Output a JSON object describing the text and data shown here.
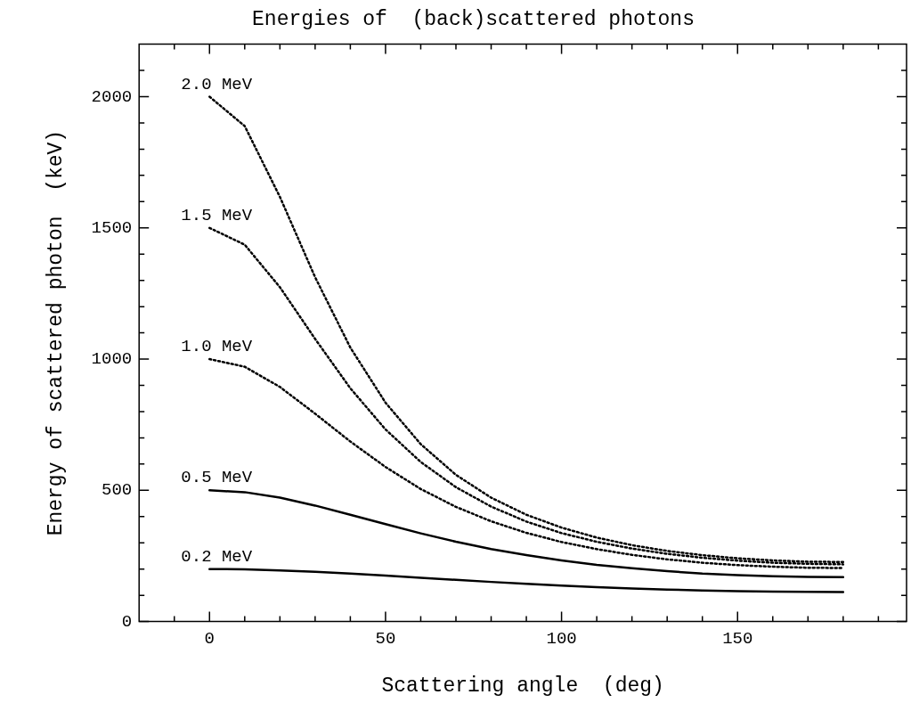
{
  "chart_data": {
    "type": "line",
    "title": "Energies of  (back)scattered photons",
    "xlabel": "Scattering angle  (deg)",
    "ylabel": "Energy of scattered photon  (keV)",
    "x": [
      0,
      10,
      20,
      30,
      40,
      50,
      60,
      70,
      80,
      90,
      100,
      110,
      120,
      130,
      140,
      150,
      160,
      170,
      180
    ],
    "series": [
      {
        "name": "2.0 MeV",
        "color": "#000000",
        "line_style": "dotted",
        "values": [
          2000,
          1888,
          1618,
          1312,
          1044,
          834,
          676,
          559,
          472,
          407,
          358,
          320,
          291,
          269,
          253,
          241,
          233,
          228,
          227
        ]
      },
      {
        "name": "1.5 MeV",
        "color": "#000000",
        "line_style": "dotted",
        "values": [
          1500,
          1436,
          1274,
          1077,
          889,
          732,
          608,
          512,
          438,
          381,
          337,
          304,
          278,
          258,
          243,
          232,
          224,
          220,
          218
        ]
      },
      {
        "name": "1.0 MeV",
        "color": "#000000",
        "line_style": "dotted",
        "values": [
          1000,
          971,
          894,
          792,
          686,
          589,
          505,
          437,
          382,
          338,
          303,
          276,
          254,
          237,
          224,
          215,
          209,
          205,
          204
        ]
      },
      {
        "name": "0.5 MeV",
        "color": "#000000",
        "line_style": "solid",
        "values": [
          500,
          493,
          472,
          442,
          407,
          371,
          336,
          304,
          276,
          253,
          233,
          216,
          203,
          192,
          183,
          177,
          173,
          170,
          169
        ]
      },
      {
        "name": "0.2 MeV",
        "color": "#000000",
        "line_style": "solid",
        "values": [
          200,
          199,
          195,
          190,
          183,
          175,
          167,
          159,
          151,
          144,
          137,
          131,
          126,
          122,
          118,
          116,
          114,
          113,
          112
        ]
      }
    ],
    "xlim": [
      -20,
      198
    ],
    "xticks": [
      {
        "value": -10,
        "label": null
      },
      0,
      {
        "value": 10,
        "label": null
      },
      {
        "value": 20,
        "label": null
      },
      {
        "value": 30,
        "label": null
      },
      {
        "value": 40,
        "label": null
      },
      50,
      {
        "value": 60,
        "label": null
      },
      {
        "value": 70,
        "label": null
      },
      {
        "value": 80,
        "label": null
      },
      {
        "value": 90,
        "label": null
      },
      100,
      {
        "value": 110,
        "label": null
      },
      {
        "value": 120,
        "label": null
      },
      {
        "value": 130,
        "label": null
      },
      {
        "value": 140,
        "label": null
      },
      150,
      {
        "value": 160,
        "label": null
      },
      {
        "value": 170,
        "label": null
      },
      {
        "value": 180,
        "label": null
      },
      {
        "value": 190,
        "label": null
      }
    ],
    "ylim": [
      0,
      2200
    ],
    "yticks": [
      0,
      {
        "value": 100,
        "label": null
      },
      {
        "value": 200,
        "label": null
      },
      {
        "value": 300,
        "label": null
      },
      {
        "value": 400,
        "label": null
      },
      500,
      {
        "value": 600,
        "label": null
      },
      {
        "value": 700,
        "label": null
      },
      {
        "value": 800,
        "label": null
      },
      {
        "value": 900,
        "label": null
      },
      1000,
      {
        "value": 1100,
        "label": null
      },
      {
        "value": 1200,
        "label": null
      },
      {
        "value": 1300,
        "label": null
      },
      {
        "value": 1400,
        "label": null
      },
      1500,
      {
        "value": 1600,
        "label": null
      },
      {
        "value": 1700,
        "label": null
      },
      {
        "value": 1800,
        "label": null
      },
      {
        "value": 1900,
        "label": null
      },
      2000,
      {
        "value": 2100,
        "label": null
      }
    ],
    "grid": false,
    "legend": false,
    "marker": "none"
  }
}
